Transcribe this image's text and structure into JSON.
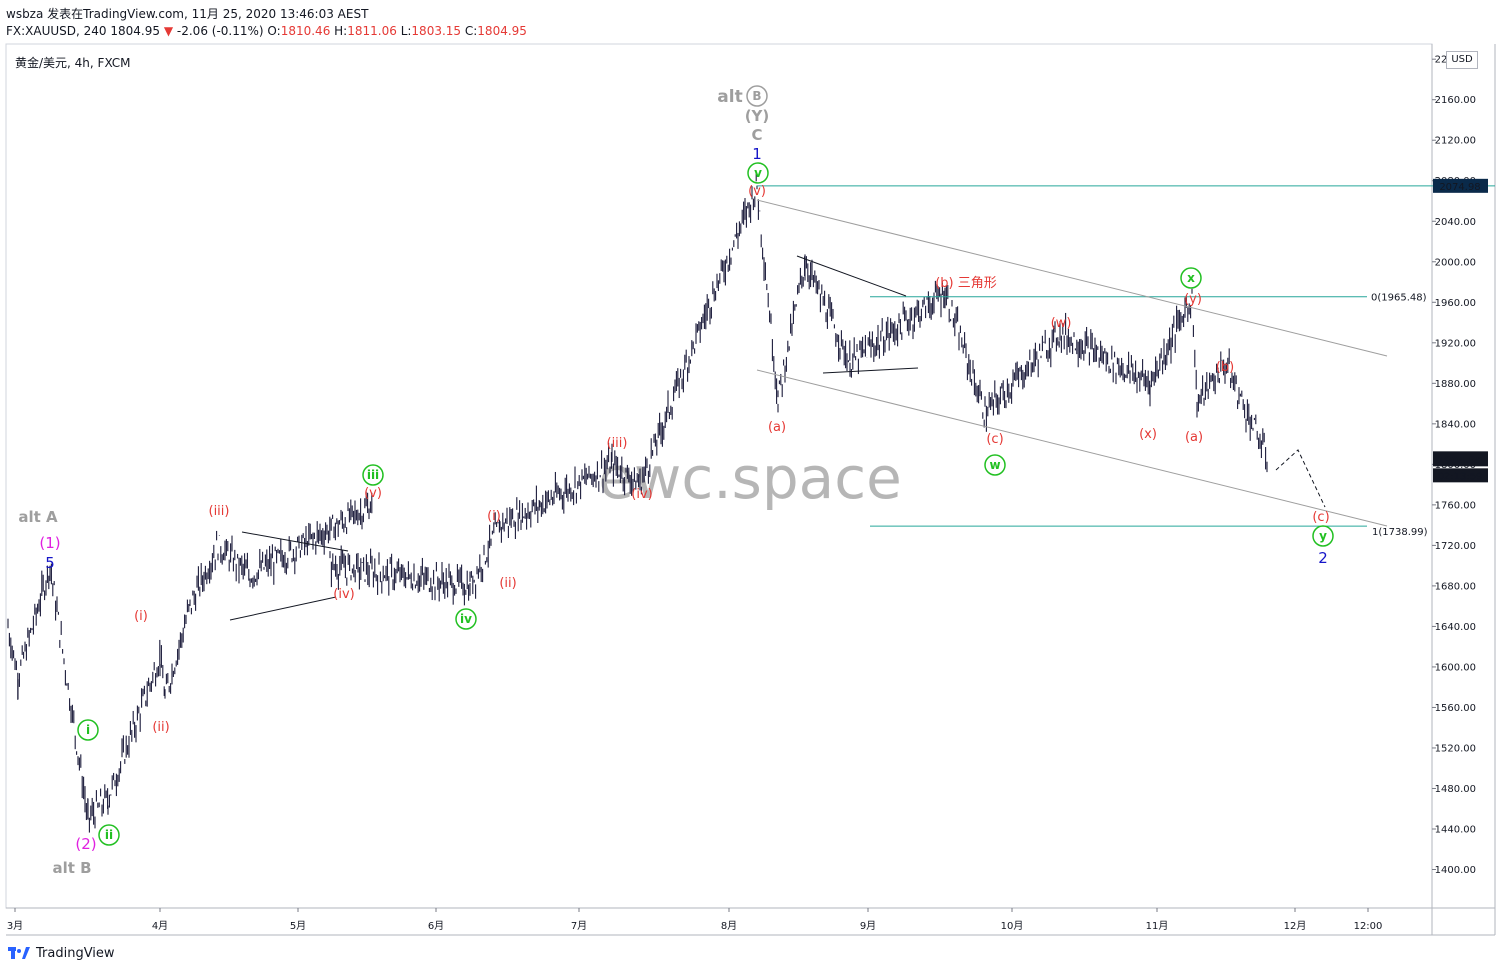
{
  "header": {
    "line1": "wsbza 发表在TradingView.com, 11月 25, 2020 13:46:03 AEST",
    "symbol": "FX:XAUUSD, 240",
    "last": "1804.95",
    "change": "-2.06 (-0.11%)",
    "o_label": "O:",
    "o": "1810.46",
    "h_label": "H:",
    "h": "1811.06",
    "l_label": "L:",
    "l": "1803.15",
    "c_label": "C:",
    "c": "1804.95"
  },
  "series_label": "黄金/美元, 4h, FXCM",
  "currency": "USD",
  "watermark": "ewc.space",
  "footer": {
    "brand": "TradingView"
  },
  "colors": {
    "candle": "#1b1b3a",
    "cyan_line": "#26a69a",
    "red": "#e53935",
    "green": "#22c022",
    "gray": "#9e9e9e",
    "blue": "#1515c8",
    "magenta": "#e020e0"
  },
  "chart_data": {
    "type": "line",
    "title": "",
    "x_labels": [
      "3月",
      "4月",
      "5月",
      "6月",
      "7月",
      "8月",
      "9月",
      "10月",
      "11月",
      "12月",
      "12:00"
    ],
    "y_ticks": [
      1400,
      1440,
      1480,
      1520,
      1560,
      1600,
      1640,
      1680,
      1720,
      1760,
      1800,
      1840,
      1880,
      1920,
      1960,
      2000,
      2040,
      2080,
      2120,
      2160,
      2200
    ],
    "ylim": [
      1362,
      2215
    ],
    "price_path": [
      [
        "3月",
        1640
      ],
      [
        "3月",
        1590
      ],
      [
        "3月",
        1700
      ],
      [
        "3月",
        1450
      ],
      [
        "3月",
        1470
      ],
      [
        "4月",
        1610
      ],
      [
        "4月",
        1570
      ],
      [
        "4月",
        1660
      ],
      [
        "4月",
        1720
      ],
      [
        "5月",
        1690
      ],
      [
        "5月",
        1760
      ],
      [
        "5月",
        1700
      ],
      [
        "6月",
        1680
      ],
      [
        "6月",
        1740
      ],
      [
        "6月",
        1760
      ],
      [
        "7月",
        1800
      ],
      [
        "7月",
        1780
      ],
      [
        "8月",
        1960
      ],
      [
        "8月",
        2074.98
      ],
      [
        "8月",
        1865
      ],
      [
        "9月",
        2000
      ],
      [
        "9月",
        1900
      ],
      [
        "9月",
        1970
      ],
      [
        "10月",
        1850
      ],
      [
        "10月",
        1930
      ],
      [
        "11月",
        1880
      ],
      [
        "11月",
        1965.48
      ],
      [
        "11月",
        1860
      ],
      [
        "11月",
        1900
      ],
      [
        "12月",
        1804.95
      ]
    ],
    "horizontal_levels": [
      {
        "value": 2074.98,
        "label": "2074.98"
      },
      {
        "value": 1965.48,
        "label": "0(1965.48)"
      },
      {
        "value": 1738.99,
        "label": "1(1738.99)"
      }
    ],
    "current_price": "1804.95",
    "countdown": "02:13:59",
    "wave_labels": [
      {
        "text": "alt A",
        "color": "gray"
      },
      {
        "text": "(1)",
        "color": "magenta"
      },
      {
        "text": "5",
        "color": "blue"
      },
      {
        "text": "(2)",
        "color": "magenta"
      },
      {
        "text": "alt B",
        "color": "gray"
      },
      {
        "text": "i",
        "color": "green"
      },
      {
        "text": "ii",
        "color": "green"
      },
      {
        "text": "(i)",
        "color": "red"
      },
      {
        "text": "(ii)",
        "color": "red"
      },
      {
        "text": "(iii)",
        "color": "red"
      },
      {
        "text": "(iv)",
        "color": "red"
      },
      {
        "text": "(v)",
        "color": "red"
      },
      {
        "text": "iii",
        "color": "green"
      },
      {
        "text": "(i)",
        "color": "red"
      },
      {
        "text": "(ii)",
        "color": "red"
      },
      {
        "text": "iv",
        "color": "green"
      },
      {
        "text": "(iii)",
        "color": "red"
      },
      {
        "text": "(iv)",
        "color": "red"
      },
      {
        "text": "alt",
        "color": "gray"
      },
      {
        "text": "B",
        "color": "gray"
      },
      {
        "text": "(Y)",
        "color": "gray"
      },
      {
        "text": "C",
        "color": "gray"
      },
      {
        "text": "1",
        "color": "blue"
      },
      {
        "text": "v",
        "color": "green"
      },
      {
        "text": "(v)",
        "color": "red"
      },
      {
        "text": "(a)",
        "color": "red"
      },
      {
        "text": "(b) 三角形",
        "color": "red"
      },
      {
        "text": "(c)",
        "color": "red"
      },
      {
        "text": "w",
        "color": "green"
      },
      {
        "text": "(w)",
        "color": "red"
      },
      {
        "text": "(x)",
        "color": "red"
      },
      {
        "text": "x",
        "color": "green"
      },
      {
        "text": "(y)",
        "color": "red"
      },
      {
        "text": "(a)",
        "color": "red"
      },
      {
        "text": "(b)",
        "color": "red"
      },
      {
        "text": "(c)",
        "color": "red"
      },
      {
        "text": "y",
        "color": "green"
      },
      {
        "text": "2",
        "color": "blue"
      }
    ]
  }
}
